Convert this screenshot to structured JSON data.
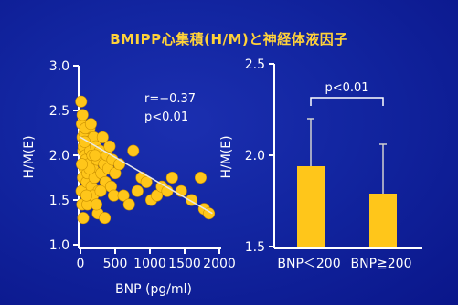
{
  "title": "BMIPP心集積(H/M)と神経体液因子",
  "colors": {
    "background": "#1225a0",
    "accent": "#ffc61a",
    "title": "#ffd23a",
    "axis": "#ffffff"
  },
  "chart_data": [
    {
      "type": "scatter",
      "xlabel": "BNP (pg/ml)",
      "ylabel": "H/M(E)",
      "xlim": [
        0,
        2000
      ],
      "ylim": [
        1.0,
        3.0
      ],
      "x_ticks": [
        "0",
        "500",
        "1000",
        "1500",
        "2000"
      ],
      "y_ticks": [
        "1.0",
        "1.5",
        "2.0",
        "2.5",
        "3.0"
      ],
      "annotation": {
        "r": "r=−0.37",
        "p": "p<0.01"
      },
      "trend_line": {
        "x": [
          0,
          1900
        ],
        "y": [
          2.2,
          1.35
        ]
      },
      "points": [
        [
          10,
          2.6
        ],
        [
          20,
          2.35
        ],
        [
          30,
          2.2
        ],
        [
          40,
          2.05
        ],
        [
          50,
          1.9
        ],
        [
          60,
          1.85
        ],
        [
          15,
          1.6
        ],
        [
          25,
          1.45
        ],
        [
          35,
          1.75
        ],
        [
          45,
          2.1
        ],
        [
          55,
          2.25
        ],
        [
          70,
          2.0
        ],
        [
          80,
          1.95
        ],
        [
          90,
          1.7
        ],
        [
          100,
          1.8
        ],
        [
          110,
          2.15
        ],
        [
          120,
          1.9
        ],
        [
          130,
          2.3
        ],
        [
          140,
          2.05
        ],
        [
          150,
          1.5
        ],
        [
          160,
          1.65
        ],
        [
          170,
          2.0
        ],
        [
          180,
          1.85
        ],
        [
          190,
          2.2
        ],
        [
          200,
          1.75
        ],
        [
          220,
          2.1
        ],
        [
          240,
          1.95
        ],
        [
          260,
          1.6
        ],
        [
          280,
          2.05
        ],
        [
          300,
          1.8
        ],
        [
          320,
          2.2
        ],
        [
          340,
          1.9
        ],
        [
          360,
          1.7
        ],
        [
          380,
          2.0
        ],
        [
          400,
          1.85
        ],
        [
          420,
          2.1
        ],
        [
          440,
          1.65
        ],
        [
          460,
          1.95
        ],
        [
          480,
          1.55
        ],
        [
          500,
          1.8
        ],
        [
          40,
          1.3
        ],
        [
          100,
          1.45
        ],
        [
          180,
          1.55
        ],
        [
          250,
          1.35
        ],
        [
          350,
          1.3
        ],
        [
          560,
          1.9
        ],
        [
          620,
          1.55
        ],
        [
          700,
          1.45
        ],
        [
          760,
          2.05
        ],
        [
          820,
          1.6
        ],
        [
          880,
          1.75
        ],
        [
          950,
          1.7
        ],
        [
          1020,
          1.5
        ],
        [
          1100,
          1.55
        ],
        [
          1170,
          1.65
        ],
        [
          1250,
          1.6
        ],
        [
          1320,
          1.75
        ],
        [
          1450,
          1.6
        ],
        [
          1600,
          1.5
        ],
        [
          1730,
          1.75
        ],
        [
          1780,
          1.4
        ],
        [
          1850,
          1.35
        ],
        [
          30,
          2.45
        ],
        [
          70,
          2.3
        ],
        [
          60,
          2.15
        ],
        [
          150,
          2.35
        ],
        [
          210,
          2.0
        ],
        [
          230,
          1.45
        ],
        [
          290,
          1.6
        ],
        [
          130,
          1.85
        ],
        [
          20,
          1.9
        ],
        [
          85,
          1.55
        ]
      ]
    },
    {
      "type": "bar",
      "ylabel": "H/M(E)",
      "ylim": [
        1.5,
        2.5
      ],
      "y_ticks": [
        "1.5",
        "2.0",
        "2.5"
      ],
      "categories": [
        "BNP＜200",
        "BNP≧200"
      ],
      "values": [
        1.94,
        1.79
      ],
      "error_upper": [
        2.2,
        2.06
      ],
      "significance": "p<0.01"
    }
  ]
}
